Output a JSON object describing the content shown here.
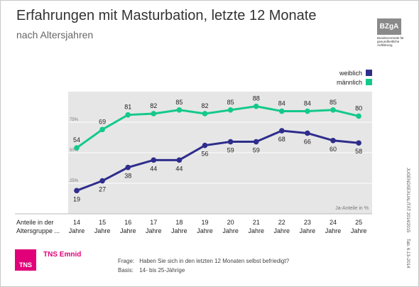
{
  "header": {
    "title": "Erfahrungen mit Masturbation, letzte 12 Monate",
    "subtitle": "nach Altersjahren"
  },
  "logo": {
    "label": "BZgA",
    "tagline": "Bundeszentrale für gesundheitliche Aufklärung"
  },
  "side_text": {
    "study": "JUGENDSEXUALITÄT   2014/2015",
    "tab": "Tab. 6.13–2014"
  },
  "footer": {
    "brand_logo": "TNS",
    "brand_name": "TNS Emnid",
    "question_label": "Frage:",
    "question": "Haben Sie sich in den letzten 12 Monaten selbst befriedigt?",
    "basis_label": "Basis:",
    "basis": "14- bis 25-Jährige"
  },
  "chart_data": {
    "type": "line",
    "x_title": "Anteile in der Altersgruppe ...",
    "x_title_lines": [
      "Anteile in der",
      "Altersgruppe ..."
    ],
    "categories": [
      "14",
      "15",
      "16",
      "17",
      "18",
      "19",
      "20",
      "21",
      "22",
      "23",
      "24",
      "25"
    ],
    "category_unit": "Jahre",
    "unit_note": "Ja-Anteile in %",
    "ylim": [
      0,
      100
    ],
    "y_ticks": [
      25,
      50,
      75
    ],
    "y_tick_labels": [
      "25%",
      "50%",
      "75%"
    ],
    "legend_position": "top-right",
    "series": [
      {
        "name": "weiblich",
        "color": "#2e2d8c",
        "values": [
          19,
          27,
          38,
          44,
          44,
          56,
          59,
          59,
          68,
          66,
          60,
          58
        ]
      },
      {
        "name": "männlich",
        "color": "#14c98a",
        "values": [
          54,
          69,
          81,
          82,
          85,
          82,
          85,
          88,
          84,
          84,
          85,
          80
        ]
      }
    ]
  }
}
